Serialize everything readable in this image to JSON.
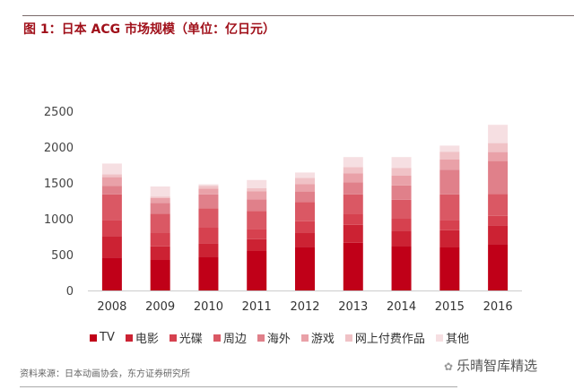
{
  "title": "图 1：日本 ACG 市场规模（单位：亿日元）",
  "source": "资料来源：日本动画协会，东方证券研究所",
  "watermark": "乐晴智库精选",
  "chart_data": {
    "type": "bar",
    "stacked": true,
    "title": "图 1：日本 ACG 市场规模（单位：亿日元）",
    "categories": [
      "2008",
      "2009",
      "2010",
      "2011",
      "2012",
      "2013",
      "2014",
      "2015",
      "2016"
    ],
    "ylim": [
      0,
      2500
    ],
    "yticks": [
      0,
      500,
      1000,
      1500,
      2000,
      2500
    ],
    "grid": false,
    "legend": "bottom",
    "series": [
      {
        "name": "TV",
        "color": "#c00018",
        "values": [
          460,
          425,
          470,
          550,
          610,
          665,
          620,
          600,
          645
        ]
      },
      {
        "name": "电影",
        "color": "#cc2233",
        "values": [
          300,
          190,
          185,
          165,
          200,
          250,
          215,
          240,
          260
        ]
      },
      {
        "name": "光碟",
        "color": "#d6414f",
        "values": [
          220,
          185,
          220,
          145,
          155,
          155,
          165,
          145,
          135
        ]
      },
      {
        "name": "周边",
        "color": "#da5864",
        "values": [
          360,
          270,
          270,
          250,
          270,
          270,
          265,
          355,
          305
        ]
      },
      {
        "name": "海外",
        "color": "#e0808a",
        "values": [
          120,
          150,
          195,
          160,
          145,
          170,
          200,
          345,
          460
        ]
      },
      {
        "name": "游戏",
        "color": "#e9a1a8",
        "values": [
          120,
          70,
          80,
          115,
          105,
          125,
          135,
          140,
          125
        ]
      },
      {
        "name": "网上付费作品",
        "color": "#f0c2c6",
        "values": [
          40,
          20,
          40,
          40,
          85,
          85,
          110,
          110,
          125
        ]
      },
      {
        "name": "其他",
        "color": "#f6dfe2",
        "values": [
          150,
          140,
          20,
          115,
          75,
          140,
          150,
          85,
          255
        ]
      }
    ]
  }
}
